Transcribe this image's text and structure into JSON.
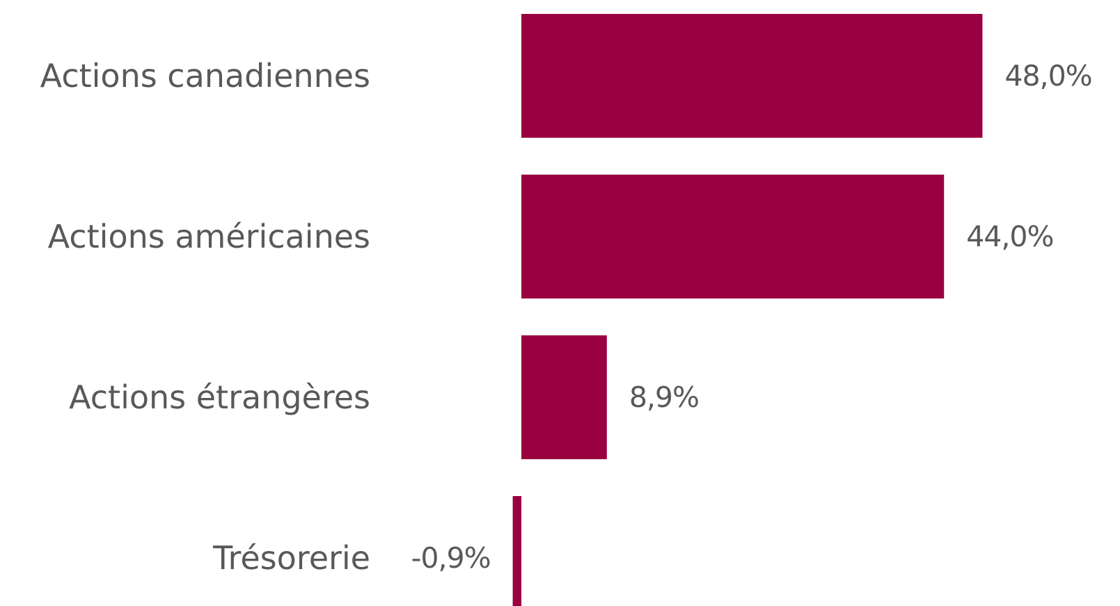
{
  "chart_data": {
    "type": "bar",
    "orientation": "horizontal",
    "categories": [
      "Actions canadiennes",
      "Actions américaines",
      "Actions étrangères",
      "Trésorerie"
    ],
    "values": [
      48.0,
      44.0,
      8.9,
      -0.9
    ],
    "value_labels": [
      "48,0%",
      "44,0%",
      "8,9%",
      "-0,9%"
    ],
    "unit": "%",
    "bar_color": "#990041",
    "text_color": "#595959",
    "grid": false,
    "legend": "none"
  }
}
